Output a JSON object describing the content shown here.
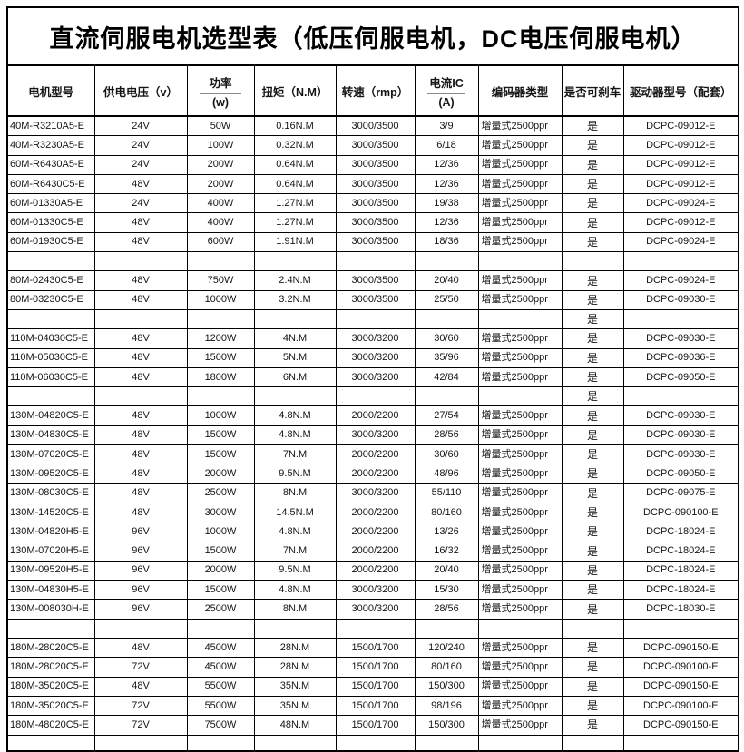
{
  "title": "直流伺服电机选型表（低压伺服电机，DC电压伺服电机）",
  "table": {
    "columns": [
      {
        "label": "电机型号",
        "sub": ""
      },
      {
        "label": "供电电压（v）",
        "sub": ""
      },
      {
        "label": "功率",
        "sub": "(w)"
      },
      {
        "label": "扭矩（N.M）",
        "sub": ""
      },
      {
        "label": "转速（rmp）",
        "sub": ""
      },
      {
        "label": "电流IC",
        "sub": "(A)"
      },
      {
        "label": "编码器类型",
        "sub": ""
      },
      {
        "label": "是否可刹车",
        "sub": ""
      },
      {
        "label": "驱动器型号（配套）",
        "sub": ""
      }
    ],
    "rows": [
      [
        "40M-R3210A5-E",
        "24V",
        "50W",
        "0.16N.M",
        "3000/3500",
        "3/9",
        "增量式2500ppr",
        "是",
        "DCPC-09012-E"
      ],
      [
        "40M-R3230A5-E",
        "24V",
        "100W",
        "0.32N.M",
        "3000/3500",
        "6/18",
        "增量式2500ppr",
        "是",
        "DCPC-09012-E"
      ],
      [
        "60M-R6430A5-E",
        "24V",
        "200W",
        "0.64N.M",
        "3000/3500",
        "12/36",
        "增量式2500ppr",
        "是",
        "DCPC-09012-E"
      ],
      [
        "60M-R6430C5-E",
        "48V",
        "200W",
        "0.64N.M",
        "3000/3500",
        "12/36",
        "增量式2500ppr",
        "是",
        "DCPC-09012-E"
      ],
      [
        "60M-01330A5-E",
        "24V",
        "400W",
        "1.27N.M",
        "3000/3500",
        "19/38",
        "增量式2500ppr",
        "是",
        "DCPC-09024-E"
      ],
      [
        "60M-01330C5-E",
        "48V",
        "400W",
        "1.27N.M",
        "3000/3500",
        "12/36",
        "增量式2500ppr",
        "是",
        "DCPC-09012-E"
      ],
      [
        "60M-01930C5-E",
        "48V",
        "600W",
        "1.91N.M",
        "3000/3500",
        "18/36",
        "增量式2500ppr",
        "是",
        "DCPC-09024-E"
      ],
      [
        "",
        "",
        "",
        "",
        "",
        "",
        "",
        "",
        ""
      ],
      [
        "80M-02430C5-E",
        "48V",
        "750W",
        "2.4N.M",
        "3000/3500",
        "20/40",
        "增量式2500ppr",
        "是",
        "DCPC-09024-E"
      ],
      [
        "80M-03230C5-E",
        "48V",
        "1000W",
        "3.2N.M",
        "3000/3500",
        "25/50",
        "增量式2500ppr",
        "是",
        "DCPC-09030-E"
      ],
      [
        "",
        "",
        "",
        "",
        "",
        "",
        "",
        "是",
        ""
      ],
      [
        "110M-04030C5-E",
        "48V",
        "1200W",
        "4N.M",
        "3000/3200",
        "30/60",
        "增量式2500ppr",
        "是",
        "DCPC-09030-E"
      ],
      [
        "110M-05030C5-E",
        "48V",
        "1500W",
        "5N.M",
        "3000/3200",
        "35/96",
        "增量式2500ppr",
        "是",
        "DCPC-09036-E"
      ],
      [
        "110M-06030C5-E",
        "48V",
        "1800W",
        "6N.M",
        "3000/3200",
        "42/84",
        "增量式2500ppr",
        "是",
        "DCPC-09050-E"
      ],
      [
        "",
        "",
        "",
        "",
        "",
        "",
        "",
        "是",
        ""
      ],
      [
        "130M-04820C5-E",
        "48V",
        "1000W",
        "4.8N.M",
        "2000/2200",
        "27/54",
        "增量式2500ppr",
        "是",
        "DCPC-09030-E"
      ],
      [
        "130M-04830C5-E",
        "48V",
        "1500W",
        "4.8N.M",
        "3000/3200",
        "28/56",
        "增量式2500ppr",
        "是",
        "DCPC-09030-E"
      ],
      [
        "130M-07020C5-E",
        "48V",
        "1500W",
        "7N.M",
        "2000/2200",
        "30/60",
        "增量式2500ppr",
        "是",
        "DCPC-09030-E"
      ],
      [
        "130M-09520C5-E",
        "48V",
        "2000W",
        "9.5N.M",
        "2000/2200",
        "48/96",
        "增量式2500ppr",
        "是",
        "DCPC-09050-E"
      ],
      [
        "130M-08030C5-E",
        "48V",
        "2500W",
        "8N.M",
        "3000/3200",
        "55/110",
        "增量式2500ppr",
        "是",
        "DCPC-09075-E"
      ],
      [
        "130M-14520C5-E",
        "48V",
        "3000W",
        "14.5N.M",
        "2000/2200",
        "80/160",
        "增量式2500ppr",
        "是",
        "DCPC-090100-E"
      ],
      [
        "130M-04820H5-E",
        "96V",
        "1000W",
        "4.8N.M",
        "2000/2200",
        "13/26",
        "增量式2500ppr",
        "是",
        "DCPC-18024-E"
      ],
      [
        "130M-07020H5-E",
        "96V",
        "1500W",
        "7N.M",
        "2000/2200",
        "16/32",
        "增量式2500ppr",
        "是",
        "DCPC-18024-E"
      ],
      [
        "130M-09520H5-E",
        "96V",
        "2000W",
        "9.5N.M",
        "2000/2200",
        "20/40",
        "增量式2500ppr",
        "是",
        "DCPC-18024-E"
      ],
      [
        "130M-04830H5-E",
        "96V",
        "1500W",
        "4.8N.M",
        "3000/3200",
        "15/30",
        "增量式2500ppr",
        "是",
        "DCPC-18024-E"
      ],
      [
        "130M-008030H-E",
        "96V",
        "2500W",
        "8N.M",
        "3000/3200",
        "28/56",
        "增量式2500ppr",
        "是",
        "DCPC-18030-E"
      ],
      [
        "",
        "",
        "",
        "",
        "",
        "",
        "",
        "",
        ""
      ],
      [
        "180M-28020C5-E",
        "48V",
        "4500W",
        "28N.M",
        "1500/1700",
        "120/240",
        "增量式2500ppr",
        "是",
        "DCPC-090150-E"
      ],
      [
        "180M-28020C5-E",
        "72V",
        "4500W",
        "28N.M",
        "1500/1700",
        "80/160",
        "增量式2500ppr",
        "是",
        "DCPC-090100-E"
      ],
      [
        "180M-35020C5-E",
        "48V",
        "5500W",
        "35N.M",
        "1500/1700",
        "150/300",
        "增量式2500ppr",
        "是",
        "DCPC-090150-E"
      ],
      [
        "180M-35020C5-E",
        "72V",
        "5500W",
        "35N.M",
        "1500/1700",
        "98/196",
        "增量式2500ppr",
        "是",
        "DCPC-090100-E"
      ],
      [
        "180M-48020C5-E",
        "72V",
        "7500W",
        "48N.M",
        "1500/1700",
        "150/300",
        "增量式2500ppr",
        "是",
        "DCPC-090150-E"
      ]
    ]
  }
}
